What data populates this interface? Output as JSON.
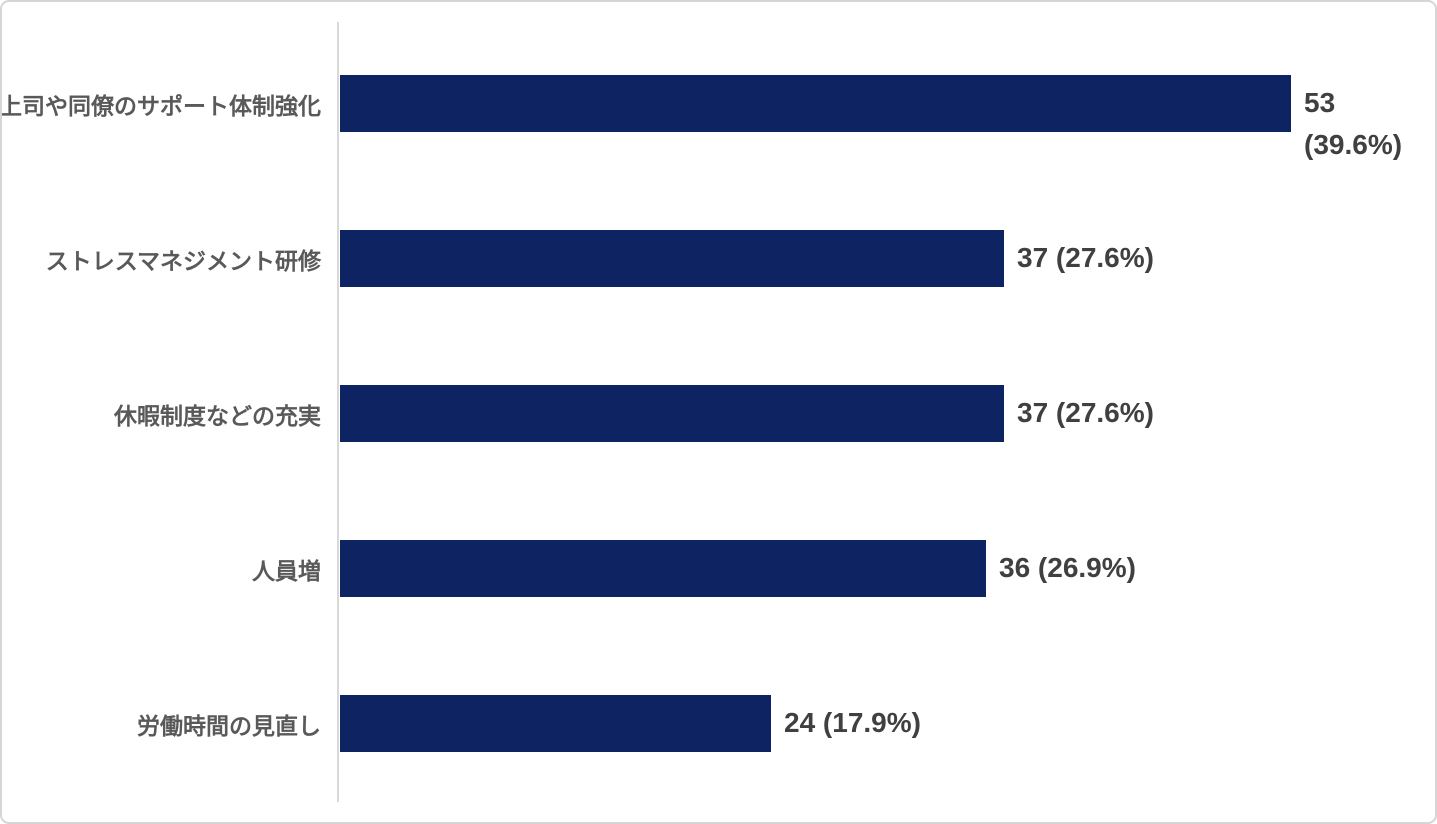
{
  "chart_data": {
    "type": "bar",
    "orientation": "horizontal",
    "title": "",
    "xlabel": "",
    "ylabel": "",
    "grid": false,
    "legend": false,
    "categories": [
      "上司や同僚のサポート体制強化",
      "ストレスマネジメント研修",
      "休暇制度などの充実",
      "人員増",
      "労働時間の見直し"
    ],
    "values": [
      53,
      37,
      37,
      36,
      24
    ],
    "percentages": [
      39.6,
      27.6,
      27.6,
      26.9,
      17.9
    ],
    "value_labels": [
      "53 (39.6%)",
      "37 (27.6%)",
      "37 (27.6%)",
      "36 (26.9%)",
      "24 (17.9%)"
    ],
    "value_label_lines": [
      [
        "53",
        "(39.6%)"
      ],
      [
        "37 (27.6%)"
      ],
      [
        "37 (27.6%)"
      ],
      [
        "36 (26.9%)"
      ],
      [
        "24 (17.9%)"
      ]
    ],
    "xlim": [
      0,
      60
    ],
    "bar_color": "#0e2462",
    "category_label_color": "#595959",
    "value_label_color": "#404040",
    "axis_line_color": "#d9d9d9"
  }
}
